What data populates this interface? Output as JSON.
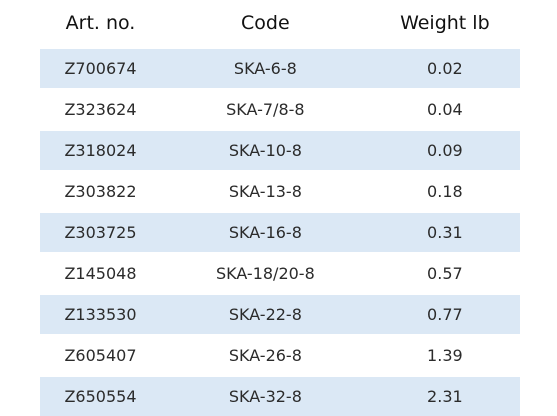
{
  "table": {
    "header": [
      "Art. no.",
      "Code",
      "Weight lb"
    ],
    "rows": [
      [
        "Z700674",
        "SKA-6-8",
        "0.02"
      ],
      [
        "Z323624",
        "SKA-7/8-8",
        "0.04"
      ],
      [
        "Z318024",
        "SKA-10-8",
        "0.09"
      ],
      [
        "Z303822",
        "SKA-13-8",
        "0.18"
      ],
      [
        "Z303725",
        "SKA-16-8",
        "0.31"
      ],
      [
        "Z145048",
        "SKA-18/20-8",
        "0.57"
      ],
      [
        "Z133530",
        "SKA-22-8",
        "0.77"
      ],
      [
        "Z605407",
        "SKA-26-8",
        "1.39"
      ],
      [
        "Z650554",
        "SKA-32-8",
        "2.31"
      ]
    ]
  }
}
